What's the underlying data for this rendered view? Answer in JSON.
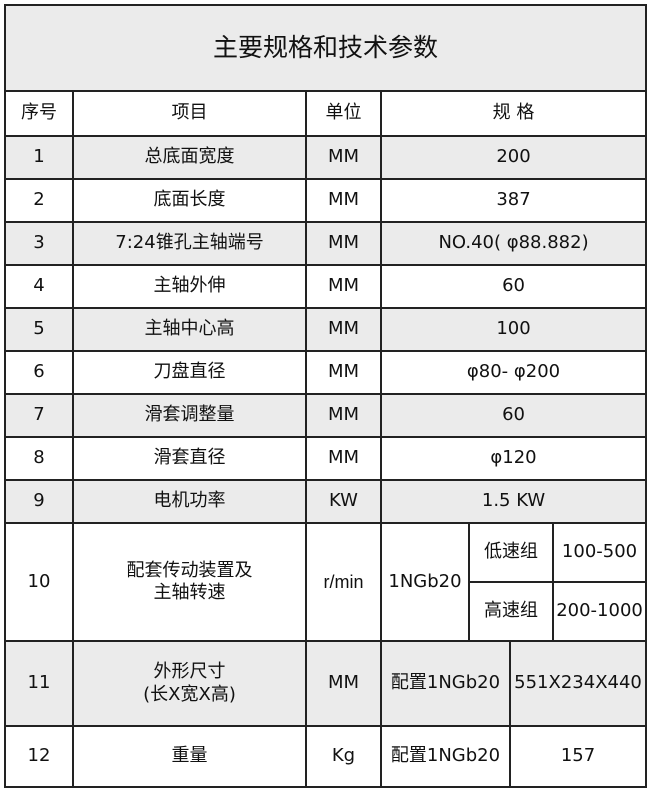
{
  "title": "主要规格和技术参数",
  "headers": {
    "no": "序号",
    "item": "项目",
    "unit": "单位",
    "spec": "规 格"
  },
  "rows": [
    {
      "no": "1",
      "item": "总底面宽度",
      "unit": "MM",
      "spec": "200"
    },
    {
      "no": "2",
      "item": "底面长度",
      "unit": "MM",
      "spec": "387"
    },
    {
      "no": "3",
      "item": "7:24锥孔主轴端号",
      "unit": "MM",
      "spec": "NO.40( φ88.882)"
    },
    {
      "no": "4",
      "item": "主轴外伸",
      "unit": "MM",
      "spec": "60"
    },
    {
      "no": "5",
      "item": "主轴中心高",
      "unit": "MM",
      "spec": "100"
    },
    {
      "no": "6",
      "item": "刀盘直径",
      "unit": "MM",
      "spec": "φ80- φ200"
    },
    {
      "no": "7",
      "item": "滑套调整量",
      "unit": "MM",
      "spec": "60"
    },
    {
      "no": "8",
      "item": "滑套直径",
      "unit": "MM",
      "spec": "φ120"
    },
    {
      "no": "9",
      "item": "电机功率",
      "unit": "KW",
      "spec": "1.5 KW"
    }
  ],
  "row10": {
    "no": "10",
    "item_line1": "配套传动装置及",
    "item_line2": "主轴转速",
    "unit": "r/min",
    "config": "1NGb20",
    "low_label": "低速组",
    "low_value": "100-500",
    "high_label": "高速组",
    "high_value": "200-1000"
  },
  "row11": {
    "no": "11",
    "item_line1": "外形尺寸",
    "item_line2": "(长X宽X高)",
    "unit": "MM",
    "config": "配置1NGb20",
    "value": "551X234X440"
  },
  "row12": {
    "no": "12",
    "item": "重量",
    "unit": "Kg",
    "config": "配置1NGb20",
    "value": "157"
  }
}
